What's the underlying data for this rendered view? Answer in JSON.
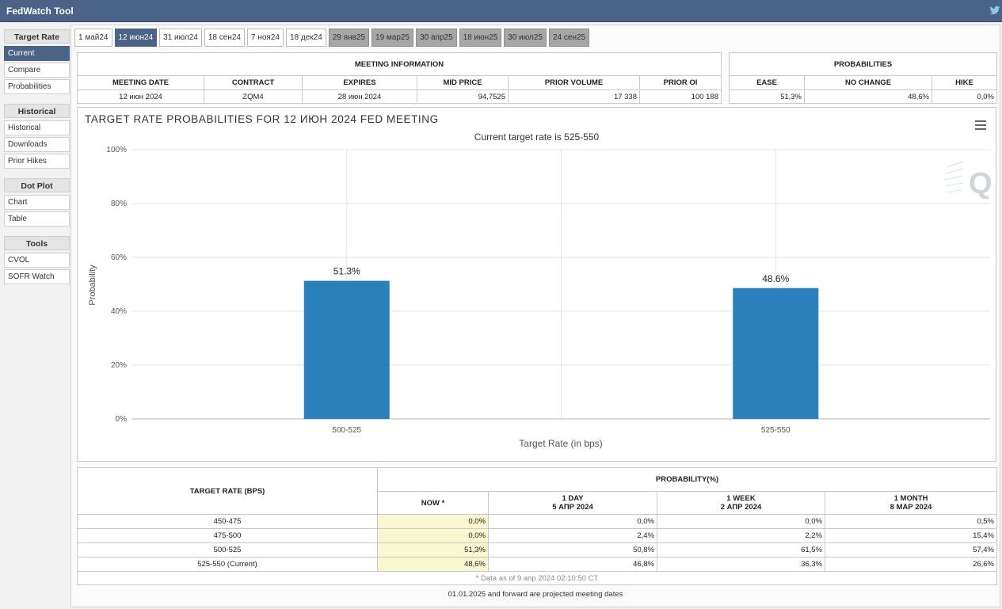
{
  "app": {
    "title": "FedWatch Tool",
    "twitter_icon": "twitter-bird-icon"
  },
  "sidebar": {
    "groups": [
      {
        "header": "Target Rate",
        "items": [
          {
            "label": "Current",
            "active": true
          },
          {
            "label": "Compare"
          },
          {
            "label": "Probabilities"
          }
        ]
      },
      {
        "header": "Historical",
        "items": [
          {
            "label": "Historical"
          },
          {
            "label": "Downloads"
          },
          {
            "label": "Prior Hikes"
          }
        ]
      },
      {
        "header": "Dot Plot",
        "items": [
          {
            "label": "Chart"
          },
          {
            "label": "Table"
          }
        ]
      },
      {
        "header": "Tools",
        "items": [
          {
            "label": "CVOL"
          },
          {
            "label": "SOFR Watch"
          }
        ]
      }
    ]
  },
  "tabs": [
    {
      "label": "1 май24",
      "state": "normal"
    },
    {
      "label": "12 июн24",
      "state": "active"
    },
    {
      "label": "31 июл24",
      "state": "normal"
    },
    {
      "label": "18 сен24",
      "state": "normal"
    },
    {
      "label": "7 ноя24",
      "state": "normal"
    },
    {
      "label": "18 дек24",
      "state": "normal"
    },
    {
      "label": "29 янв25",
      "state": "gray"
    },
    {
      "label": "19 мар25",
      "state": "gray"
    },
    {
      "label": "30 апр25",
      "state": "gray"
    },
    {
      "label": "18 июн25",
      "state": "gray"
    },
    {
      "label": "30 июл25",
      "state": "gray"
    },
    {
      "label": "24 сен25",
      "state": "gray"
    }
  ],
  "meeting_info": {
    "title": "MEETING INFORMATION",
    "headers": [
      "MEETING DATE",
      "CONTRACT",
      "EXPIRES",
      "MID PRICE",
      "PRIOR VOLUME",
      "PRIOR OI"
    ],
    "values": [
      "12 июн 2024",
      "ZQM4",
      "28 июн 2024",
      "94,7525",
      "17 338",
      "100 188"
    ]
  },
  "probabilities": {
    "title": "PROBABILITIES",
    "headers": [
      "EASE",
      "NO CHANGE",
      "HIKE"
    ],
    "values": [
      "51,3%",
      "48,6%",
      "0,0%"
    ]
  },
  "chart": {
    "menu_icon": "hamburger-menu-icon",
    "watermark_icon": "cme-q-logo-icon"
  },
  "chart_data": {
    "type": "bar",
    "title": "TARGET RATE PROBABILITIES FOR 12 ИЮН 2024 FED MEETING",
    "subtitle": "Current target rate is 525-550",
    "xlabel": "Target Rate (in bps)",
    "ylabel": "Probability",
    "categories": [
      "500-525",
      "525-550"
    ],
    "values": [
      51.3,
      48.6
    ],
    "data_labels": [
      "51.3%",
      "48.6%"
    ],
    "ylim": [
      0,
      100
    ],
    "yticks": [
      "0%",
      "20%",
      "40%",
      "60%",
      "80%",
      "100%"
    ],
    "grid": true,
    "bar_color": "#2b7fba"
  },
  "bottom_table": {
    "col_target": "TARGET RATE (BPS)",
    "col_prob": "PROBABILITY(%)",
    "sub_headers": [
      {
        "line1": "NOW *",
        "line2": ""
      },
      {
        "line1": "1 DAY",
        "line2": "5 АПР 2024"
      },
      {
        "line1": "1 WEEK",
        "line2": "2 АПР 2024"
      },
      {
        "line1": "1 MONTH",
        "line2": "8 МАР 2024"
      }
    ],
    "rows": [
      {
        "rate": "450-475",
        "vals": [
          "0,0%",
          "0,0%",
          "0,0%",
          "0,5%"
        ]
      },
      {
        "rate": "475-500",
        "vals": [
          "0,0%",
          "2,4%",
          "2,2%",
          "15,4%"
        ]
      },
      {
        "rate": "500-525",
        "vals": [
          "51,3%",
          "50,8%",
          "61,5%",
          "57,4%"
        ]
      },
      {
        "rate": "525-550 (Current)",
        "vals": [
          "48,6%",
          "46,8%",
          "36,3%",
          "26,6%"
        ]
      }
    ],
    "note": "* Data as of 9 апр 2024 02:10:50 CT"
  },
  "footer": {
    "text": "01.01.2025 and forward are projected meeting dates"
  },
  "colors": {
    "accent": "#4a6386",
    "now_highlight": "#f8f7cf",
    "bar": "#2b7fba"
  }
}
